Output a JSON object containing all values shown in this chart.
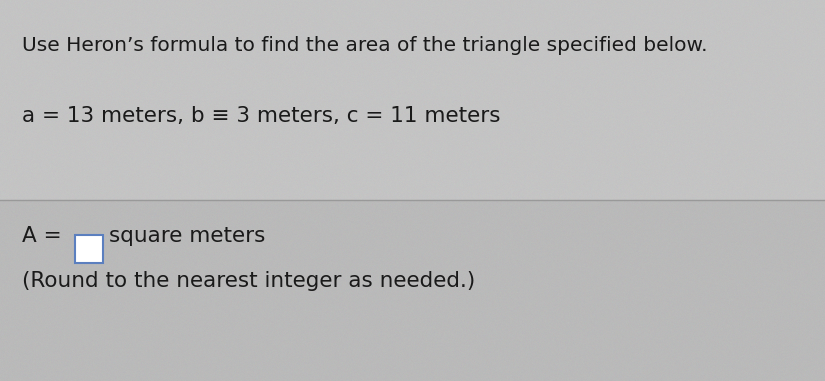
{
  "line1": "Use Heron’s formula to find the area of the triangle specified below.",
  "line2": "a = 13 meters, b ≡ 3 meters, c = 11 meters",
  "line3_prefix": "A = ",
  "line3_suffix": "square meters",
  "line4": "(Round to the nearest integer as needed.)",
  "background_color": "#c8c8c8",
  "bg_noise_alpha": 0.08,
  "text_color": "#1a1a1a",
  "divider_color": "#999999",
  "font_size_line1": 14.5,
  "font_size_line2": 15.5,
  "font_size_line3": 15.5,
  "font_size_line4": 15.5,
  "box_edge_color": "#5b7fbf",
  "box_face_color": "#ffffff",
  "upper_bg": "#d4d4d4",
  "lower_bg": "#c8c8c8"
}
